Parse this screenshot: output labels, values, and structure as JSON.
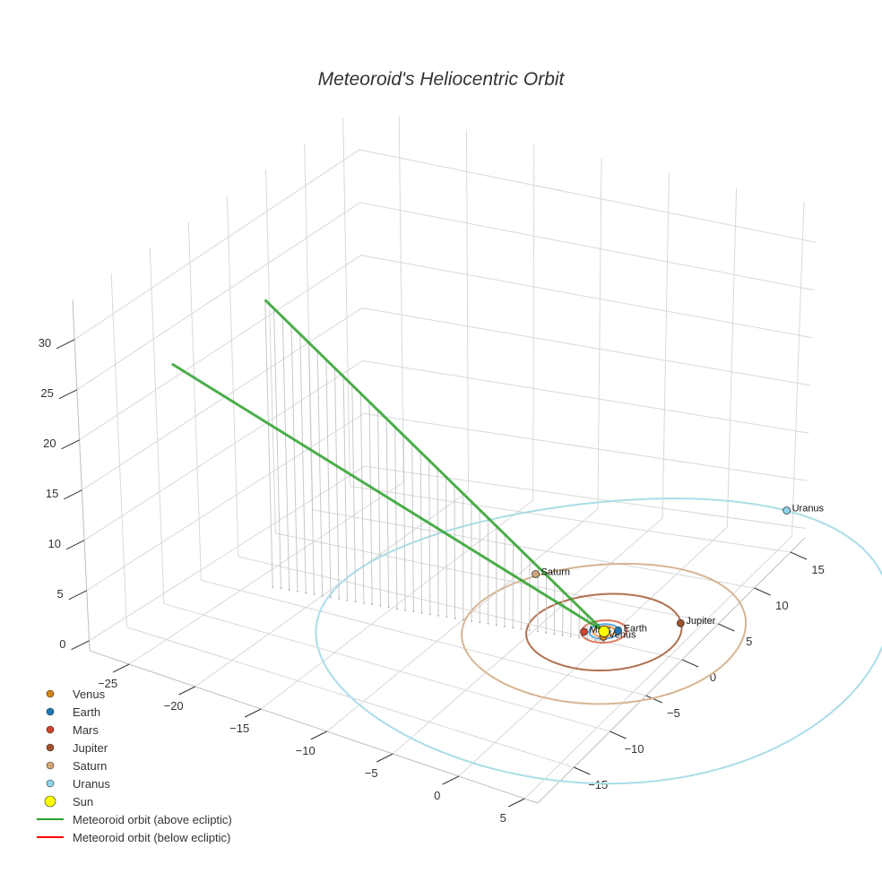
{
  "chart_data": {
    "type": "scatter3d",
    "title": "Meteoroid's Heliocentric Orbit",
    "axes": {
      "x": {
        "range": [
          -28,
          6
        ],
        "ticks": [
          -25,
          -20,
          -15,
          -10,
          -5,
          0,
          5
        ]
      },
      "y": {
        "range": [
          -20,
          17
        ],
        "ticks": [
          -15,
          -10,
          -5,
          0,
          5,
          10,
          15
        ]
      },
      "z": {
        "range": [
          -1,
          34
        ],
        "ticks": [
          0,
          5,
          10,
          15,
          20,
          25,
          30
        ]
      }
    },
    "grid": true,
    "legend_position": "bottom-left",
    "sun": {
      "name": "Sun",
      "x": 0,
      "y": 0,
      "z": 0,
      "color": "#ffff00"
    },
    "planets": [
      {
        "name": "Venus",
        "color": "#d2841a",
        "orbit_radius": 0.72,
        "x": 0.3,
        "y": -0.65,
        "z": 0
      },
      {
        "name": "Earth",
        "color": "#1f77b4",
        "orbit_radius": 1.0,
        "x": 0.8,
        "y": 0.5,
        "z": 0
      },
      {
        "name": "Mars",
        "color": "#d1432a",
        "orbit_radius": 1.52,
        "x": -1.2,
        "y": -0.6,
        "z": 0
      },
      {
        "name": "Jupiter",
        "color": "#a0522d",
        "orbit_radius": 5.2,
        "x": 4.2,
        "y": 3.0,
        "z": 0
      },
      {
        "name": "Saturn",
        "color": "#d2a679",
        "orbit_radius": 9.5,
        "x": -8.2,
        "y": 5.3,
        "z": 0
      },
      {
        "name": "Uranus",
        "color": "#8fd3e8",
        "orbit_radius": 19.2,
        "x": 3.5,
        "y": 18.9,
        "z": 0
      }
    ],
    "orbit_colors": {
      "Venus": "#ff9f4a",
      "Earth": "#5aa9e6",
      "Mars": "#e07a5f",
      "Jupiter": "#b07050",
      "Saturn": "#d7b592",
      "Uranus": "#aadde8"
    },
    "meteoroid": {
      "above_color": "#2ca02c",
      "below_color": "#ff0000",
      "above_path": [
        {
          "x": 0.0,
          "y": 0.0,
          "z": 0.0
        },
        {
          "x": -23.5,
          "y": -3.3,
          "z": 27.0
        },
        {
          "x": -23.5,
          "y": -15.5,
          "z": 27.0
        },
        {
          "x": 0.0,
          "y": 0.0,
          "z": 0.0
        }
      ],
      "drop_lines": {
        "from": [
          -23.5,
          -3.3,
          27.0
        ],
        "to": [
          0,
          0,
          0
        ],
        "count": 40,
        "color": "#c8c8c8"
      }
    },
    "legend": [
      {
        "label": "Venus",
        "kind": "marker",
        "color": "#d2841a",
        "size": 4
      },
      {
        "label": "Earth",
        "kind": "marker",
        "color": "#1f77b4",
        "size": 4
      },
      {
        "label": "Mars",
        "kind": "marker",
        "color": "#d1432a",
        "size": 4
      },
      {
        "label": "Jupiter",
        "kind": "marker",
        "color": "#a0522d",
        "size": 4
      },
      {
        "label": "Saturn",
        "kind": "marker",
        "color": "#d2a679",
        "size": 4
      },
      {
        "label": "Uranus",
        "kind": "marker",
        "color": "#8fd3e8",
        "size": 4
      },
      {
        "label": "Sun",
        "kind": "marker",
        "color": "#ffff00",
        "size": 6
      },
      {
        "label": "Meteoroid orbit (above ecliptic)",
        "kind": "line",
        "color": "#2ca02c"
      },
      {
        "label": "Meteoroid orbit (below ecliptic)",
        "kind": "line",
        "color": "#ff0000"
      }
    ]
  }
}
